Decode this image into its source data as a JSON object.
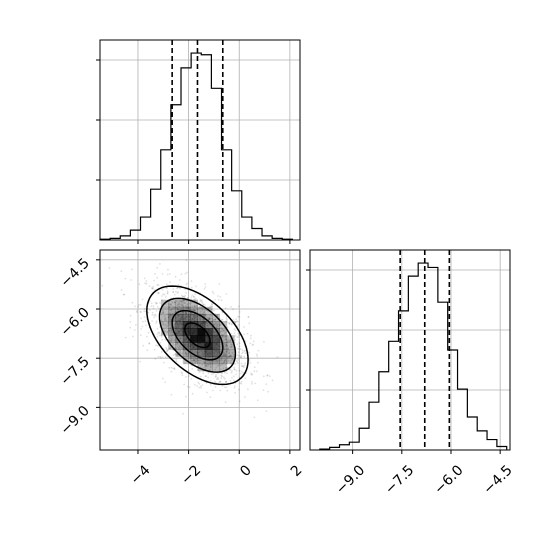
{
  "chart_data": [
    {
      "panel": "top-left",
      "type": "histogram",
      "variable": "param_1",
      "xlim": [
        -5.5,
        2.4
      ],
      "x_ticks": [
        -4,
        -2,
        0,
        2
      ],
      "x_tick_labels": [],
      "y_tick_labels": [],
      "grid": true,
      "quantile_lines": [
        -2.65,
        -1.65,
        -0.65
      ],
      "bin_edges": [
        -5.5,
        -5.1,
        -4.7,
        -4.3,
        -3.9,
        -3.5,
        -3.1,
        -2.7,
        -2.3,
        -1.9,
        -1.5,
        -1.1,
        -0.7,
        -0.3,
        0.1,
        0.5,
        0.9,
        1.3,
        1.7,
        2.1
      ],
      "counts": [
        1,
        2,
        5,
        12,
        28,
        62,
        110,
        165,
        210,
        228,
        226,
        185,
        110,
        60,
        28,
        14,
        5,
        2,
        1
      ]
    },
    {
      "panel": "bottom-left",
      "type": "scatter-density",
      "xlim": [
        -5.5,
        2.4
      ],
      "ylim": [
        -10.3,
        -4.2
      ],
      "x_ticks": [
        -4,
        -2,
        0,
        2
      ],
      "x_tick_labels": [
        "−4",
        "−2",
        "0",
        "2"
      ],
      "y_ticks": [
        -4.5,
        -6.0,
        -7.5,
        -9.0
      ],
      "y_tick_labels": [
        "−4.5",
        "−6.0",
        "−7.5",
        "−9.0"
      ],
      "grid": true,
      "mean": [
        -1.65,
        -6.8
      ],
      "std": [
        1.0,
        0.75
      ],
      "correlation": -0.5,
      "contour_levels_sigma": [
        0.5,
        1.0,
        1.5,
        2.0
      ],
      "n_points": 1600
    },
    {
      "panel": "bottom-right",
      "type": "histogram",
      "variable": "param_2",
      "xlim": [
        -10.3,
        -4.2
      ],
      "x_ticks": [
        -9.0,
        -7.5,
        -6.0,
        -4.5
      ],
      "x_tick_labels": [
        "−9.0",
        "−7.5",
        "−6.0",
        "−4.5"
      ],
      "y_tick_labels": [],
      "grid": true,
      "quantile_lines": [
        -7.55,
        -6.8,
        -6.05
      ],
      "bin_edges": [
        -10.0,
        -9.7,
        -9.4,
        -9.1,
        -8.8,
        -8.5,
        -8.2,
        -7.9,
        -7.6,
        -7.3,
        -7.0,
        -6.7,
        -6.4,
        -6.1,
        -5.8,
        -5.5,
        -5.2,
        -4.9,
        -4.6,
        -4.3
      ],
      "counts": [
        1,
        3,
        6,
        9,
        25,
        55,
        90,
        125,
        160,
        200,
        215,
        210,
        170,
        115,
        70,
        38,
        22,
        12,
        4
      ]
    }
  ]
}
